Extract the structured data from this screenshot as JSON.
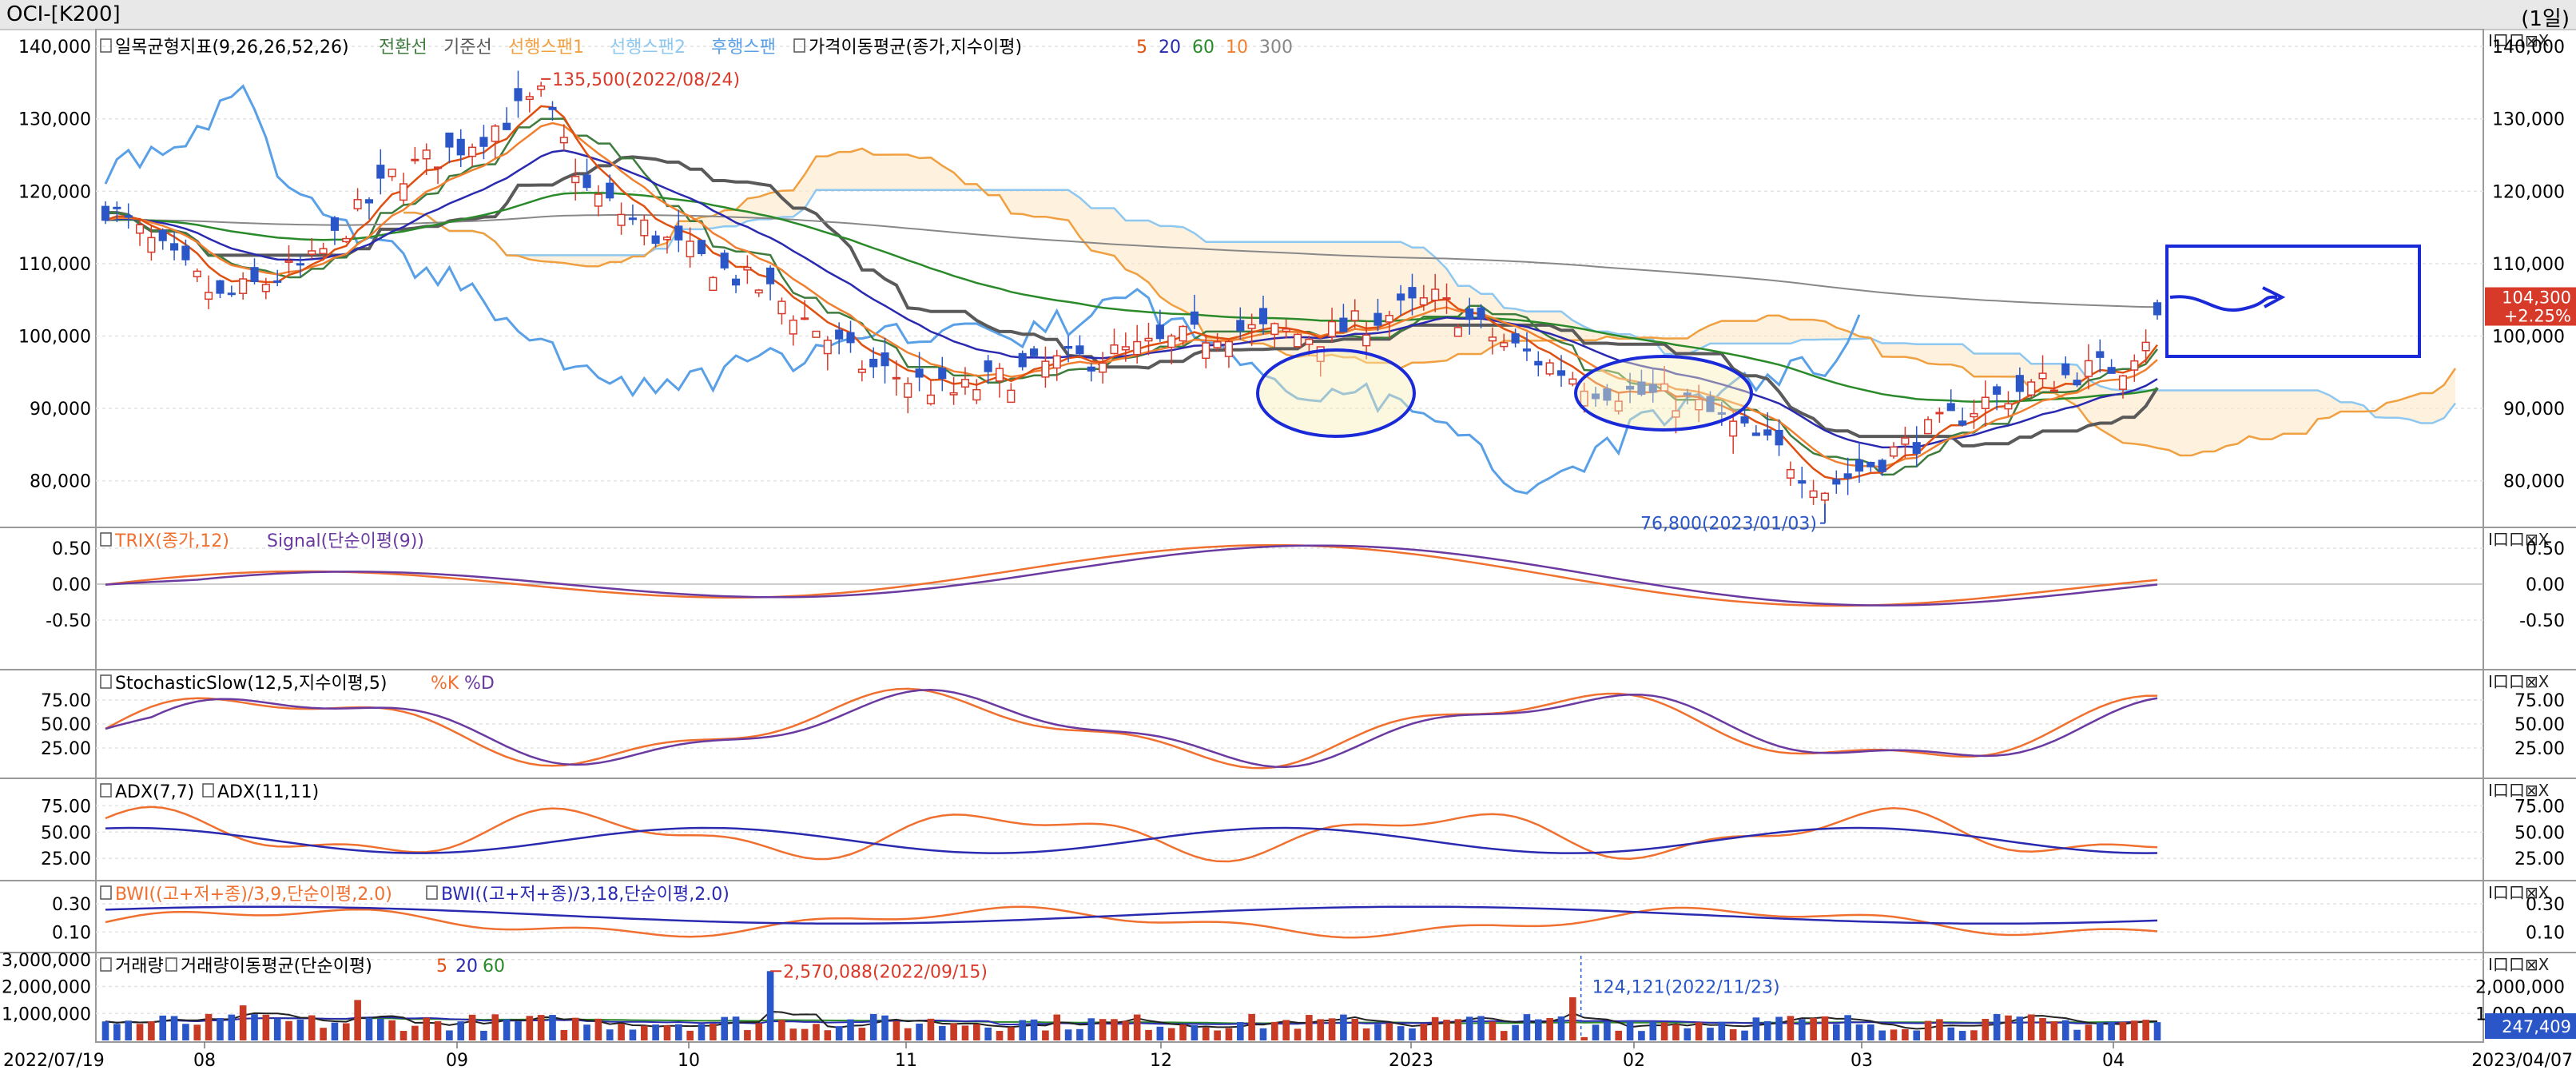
{
  "window": {
    "title": "OCI-[K200]",
    "period": "(1일)"
  },
  "pane_buttons": "I口口⊠X",
  "chart_data": [
    {
      "type": "candlestick",
      "pane": "price",
      "legend": {
        "ichimoku_name": "일목균형지표(9,26,26,52,26)",
        "ichimoku_lines": [
          {
            "label": "전환선",
            "color": "#3e7c3e"
          },
          {
            "label": "기준선",
            "color": "#5a5a5a"
          },
          {
            "label": "선행스팬1",
            "color": "#f0a040"
          },
          {
            "label": "선행스팬2",
            "color": "#8ec8f0"
          },
          {
            "label": "후행스팬",
            "color": "#5aa0e6"
          }
        ],
        "ma_name": "가격이동평균(종가,지수이평)",
        "ma_periods": [
          {
            "label": "5",
            "color": "#e05010"
          },
          {
            "label": "20",
            "color": "#2a2ab0"
          },
          {
            "label": "60",
            "color": "#2a8a2a"
          },
          {
            "label": "10",
            "color": "#f08030"
          },
          {
            "label": "300",
            "color": "#888888"
          }
        ]
      },
      "yticks": [
        "140,000",
        "130,000",
        "120,000",
        "110,000",
        "100,000",
        "90,000",
        "80,000"
      ],
      "yvalues": [
        140000,
        130000,
        120000,
        110000,
        100000,
        90000,
        80000
      ],
      "ylim": [
        74000,
        142000
      ],
      "annotations": [
        {
          "text": "135,500(2022/08/24)",
          "kind": "high",
          "value": 135500,
          "date": "2022/08/24"
        },
        {
          "text": "76,800(2023/01/03)",
          "kind": "low",
          "value": 76800,
          "date": "2023/01/03"
        }
      ],
      "current_price": "104,300",
      "current_change": "+2.25%",
      "ohlc_sample": [
        {
          "date": "2022/08/24",
          "high": 135500
        },
        {
          "date": "2023/01/03",
          "low": 76800
        },
        {
          "date": "2023/04/07",
          "close": 104300
        }
      ]
    },
    {
      "type": "line",
      "pane": "trix",
      "series": [
        {
          "name": "TRIX(종가,12)",
          "color": "#f07030"
        },
        {
          "name": "Signal(단순이평(9))",
          "color": "#6a3aa0"
        }
      ],
      "yticks": [
        "0.50",
        "0.00",
        "-0.50"
      ],
      "yvalues": [
        0.5,
        0.0,
        -0.5
      ],
      "ylim": [
        -1.1,
        0.7
      ]
    },
    {
      "type": "line",
      "pane": "stochastic",
      "name": "StochasticSlow(12,5,지수이평,5)",
      "series": [
        {
          "name": "%K",
          "color": "#f07030"
        },
        {
          "name": "%D",
          "color": "#6a3aa0"
        }
      ],
      "yticks": [
        "75.00",
        "50.00",
        "25.00"
      ],
      "yvalues": [
        75,
        50,
        25
      ],
      "ylim": [
        0,
        100
      ]
    },
    {
      "type": "line",
      "pane": "adx",
      "series": [
        {
          "name": "ADX(7,7)",
          "color": "#f07030"
        },
        {
          "name": "ADX(11,11)",
          "color": "#2a2ab0"
        }
      ],
      "yticks": [
        "75.00",
        "50.00",
        "25.00"
      ],
      "yvalues": [
        75,
        50,
        25
      ],
      "ylim": [
        10,
        95
      ]
    },
    {
      "type": "line",
      "pane": "bwi",
      "series": [
        {
          "name": "BWI((고+저+종)/3,9,단순이평,2.0)",
          "color": "#f07030"
        },
        {
          "name": "BWI((고+저+종)/3,18,단순이평,2.0)",
          "color": "#2a2ab0"
        }
      ],
      "yticks": [
        "0.30",
        "0.10"
      ],
      "yvalues": [
        0.3,
        0.1
      ],
      "ylim": [
        0.0,
        0.42
      ]
    },
    {
      "type": "bar",
      "pane": "volume",
      "legend_name": "거래량",
      "ma_name": "거래량이동평균(단순이평)",
      "ma_periods": [
        {
          "label": "5",
          "color": "#e05010"
        },
        {
          "label": "20",
          "color": "#2a2ab0"
        },
        {
          "label": "60",
          "color": "#2a8a2a"
        }
      ],
      "yticks_left": [
        "3,000,000",
        "2,000,000",
        "1,000,000"
      ],
      "yticks_right": [
        "2,000,000",
        "1,000,000"
      ],
      "yvalues": [
        3000000,
        2000000,
        1000000
      ],
      "ylim": [
        0,
        3200000
      ],
      "annotations": [
        {
          "text": "2,570,088(2022/09/15)",
          "value": 2570088,
          "date": "2022/09/15"
        },
        {
          "text": "124,121(2022/11/23)",
          "value": 124121,
          "date": "2022/11/23"
        }
      ],
      "current_volume": "247,409"
    }
  ],
  "xaxis": {
    "start": "2022/07/19",
    "end": "2023/04/07",
    "labels": [
      "08",
      "09",
      "10",
      "11",
      "12",
      "2023",
      "02",
      "03",
      "04"
    ]
  }
}
